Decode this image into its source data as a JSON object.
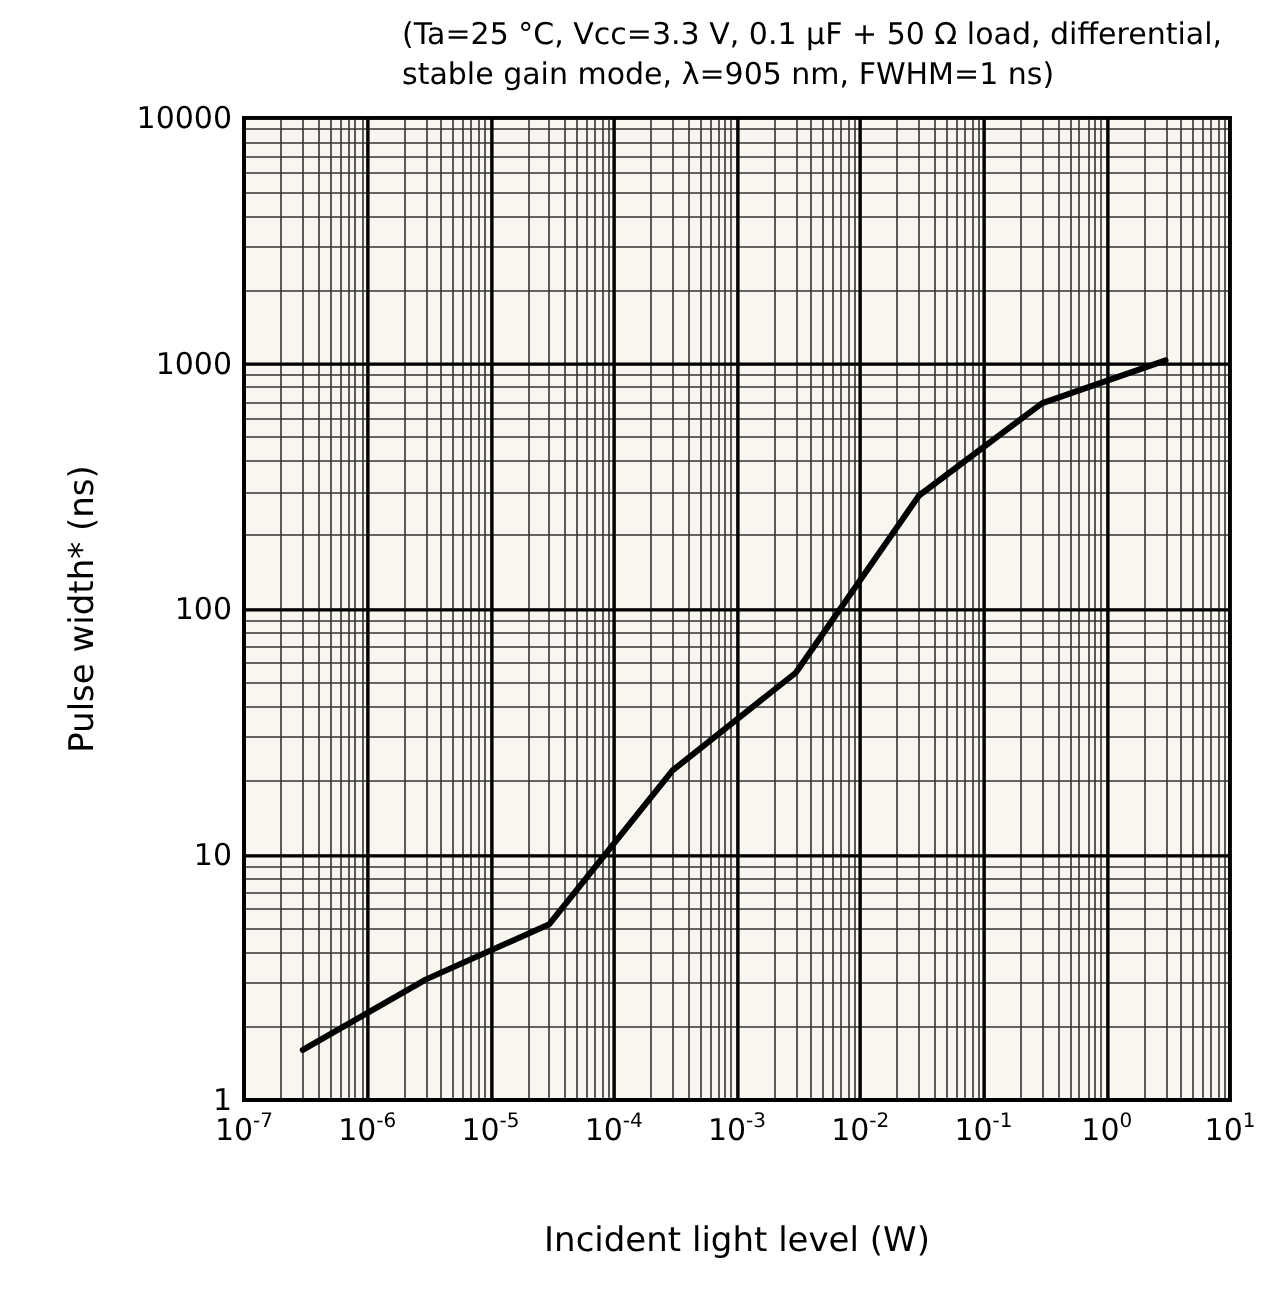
{
  "chart_data": {
    "type": "line",
    "title": "(Ta=25 °C, Vcc=3.3 V, 0.1 µF + 50 Ω load, differential,\nstable gain mode, λ=905 nm, FWHM=1 ns)",
    "xlabel": "Incident light level (W)",
    "ylabel": "Pulse width* (ns)",
    "x": [
      3e-07,
      3e-06,
      3e-05,
      0.0003,
      0.003,
      0.03,
      0.3,
      3
    ],
    "series": [
      {
        "color": "#000000",
        "values": [
          1.6,
          3.1,
          5.2,
          22,
          55,
          290,
          690,
          1030
        ]
      }
    ],
    "log": "xy",
    "xlim": [
      1e-07,
      10
    ],
    "ylim": [
      1,
      10000
    ],
    "xticks": [
      {
        "value": 1e-07,
        "label": "10$^{-7}$"
      },
      {
        "value": 1e-06,
        "label": "10$^{-6}$"
      },
      {
        "value": 1e-05,
        "label": "10$^{-5}$"
      },
      {
        "value": 0.0001,
        "label": "10$^{-4}$"
      },
      {
        "value": 0.001,
        "label": "10$^{-3}$"
      },
      {
        "value": 0.01,
        "label": "10$^{-2}$"
      },
      {
        "value": 0.1,
        "label": "10$^{-1}$"
      },
      {
        "value": 1,
        "label": "10$^{0}$"
      },
      {
        "value": 10,
        "label": "10$^{1}$"
      }
    ],
    "yticks": [
      1,
      10,
      100,
      1000,
      10000
    ],
    "grid": true,
    "marker": "none",
    "line_style": "solid"
  }
}
